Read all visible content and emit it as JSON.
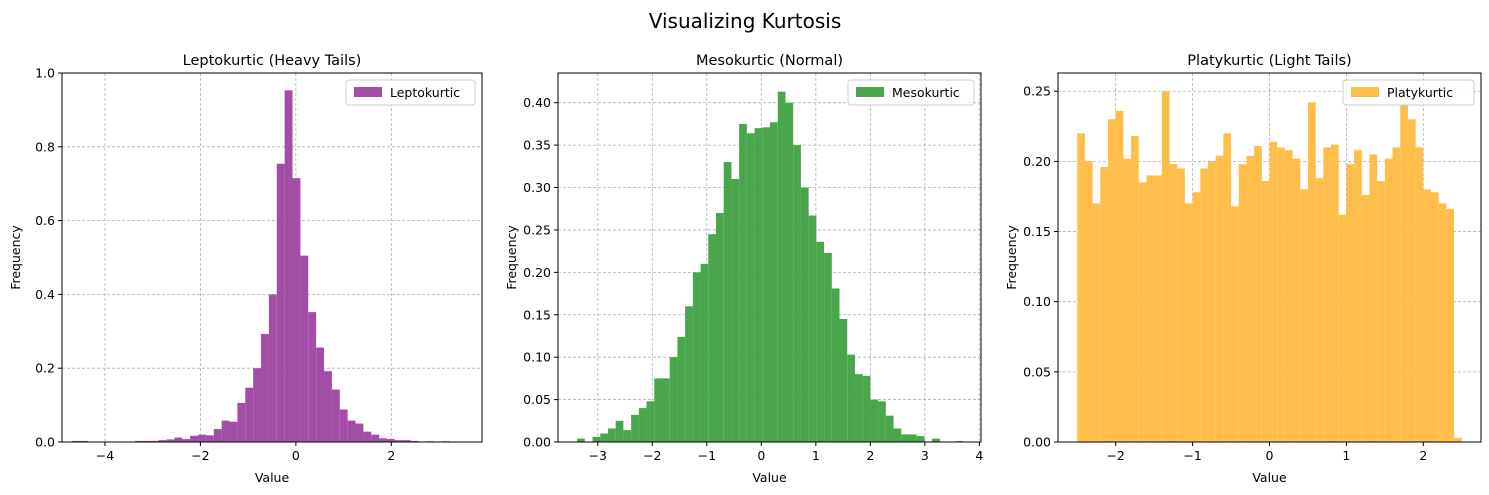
{
  "figure": {
    "title": "Visualizing Kurtosis"
  },
  "chart_data": [
    {
      "type": "bar",
      "title": "Leptokurtic (Heavy Tails)",
      "xlabel": "Value",
      "ylabel": "Frequency",
      "legend": "Leptokurtic",
      "legend_position": "top-right",
      "color": "#a34ea6",
      "grid": true,
      "xlim": [
        -4.9,
        3.9
      ],
      "ylim": [
        0,
        1.0
      ],
      "xticks": [
        -4,
        -2,
        0,
        2
      ],
      "xtick_labels": [
        "−4",
        "−2",
        "0",
        "2"
      ],
      "yticks": [
        0.0,
        0.2,
        0.4,
        0.6,
        0.8,
        1.0
      ],
      "ytick_labels": [
        "0.0",
        "0.2",
        "0.4",
        "0.6",
        "0.8",
        "1.0"
      ],
      "bin_start": -4.69,
      "bin_width": 0.165,
      "values": [
        0.003,
        0.003,
        0.0,
        0.0,
        0.0,
        0.0,
        0.0,
        0.0,
        0.003,
        0.003,
        0.003,
        0.005,
        0.007,
        0.012,
        0.008,
        0.017,
        0.02,
        0.018,
        0.035,
        0.058,
        0.055,
        0.106,
        0.147,
        0.2,
        0.293,
        0.4,
        0.754,
        0.953,
        0.715,
        0.505,
        0.352,
        0.256,
        0.192,
        0.142,
        0.088,
        0.058,
        0.05,
        0.028,
        0.02,
        0.01,
        0.008,
        0.005,
        0.005,
        0.003,
        0.0,
        0.002,
        0.0,
        0.002,
        0.001,
        0.001
      ]
    },
    {
      "type": "bar",
      "title": "Mesokurtic (Normal)",
      "xlabel": "Value",
      "ylabel": "Frequency",
      "legend": "Mesokurtic",
      "legend_position": "top-right",
      "color": "#4aa64a",
      "grid": true,
      "xlim": [
        -3.73,
        4.03
      ],
      "ylim": [
        0,
        0.435
      ],
      "xticks": [
        -3,
        -2,
        -1,
        0,
        1,
        2,
        3,
        4
      ],
      "xtick_labels": [
        "−3",
        "−2",
        "−1",
        "0",
        "1",
        "2",
        "3",
        "4"
      ],
      "yticks": [
        0.0,
        0.05,
        0.1,
        0.15,
        0.2,
        0.25,
        0.3,
        0.35,
        0.4
      ],
      "ytick_labels": [
        "0.00",
        "0.05",
        "0.10",
        "0.15",
        "0.20",
        "0.25",
        "0.30",
        "0.35",
        "0.40"
      ],
      "bin_start": -3.38,
      "bin_width": 0.1416,
      "values": [
        0.004,
        0.0,
        0.006,
        0.01,
        0.016,
        0.025,
        0.014,
        0.032,
        0.04,
        0.048,
        0.075,
        0.075,
        0.1,
        0.124,
        0.16,
        0.2,
        0.21,
        0.245,
        0.27,
        0.33,
        0.31,
        0.375,
        0.364,
        0.37,
        0.371,
        0.377,
        0.413,
        0.4,
        0.35,
        0.3,
        0.267,
        0.236,
        0.223,
        0.181,
        0.145,
        0.103,
        0.08,
        0.078,
        0.05,
        0.048,
        0.031,
        0.016,
        0.009,
        0.009,
        0.007,
        0.0,
        0.004,
        0.0,
        0.0,
        0.001
      ]
    },
    {
      "type": "bar",
      "title": "Platykurtic (Light Tails)",
      "xlabel": "Value",
      "ylabel": "Frequency",
      "legend": "Platykurtic",
      "legend_position": "top-right",
      "color": "#ffbd4a",
      "grid": true,
      "xlim": [
        -2.75,
        2.75
      ],
      "ylim": [
        0,
        0.263
      ],
      "xticks": [
        -2,
        -1,
        0,
        1,
        2
      ],
      "xtick_labels": [
        "−2",
        "−1",
        "0",
        "1",
        "2"
      ],
      "yticks": [
        0.0,
        0.05,
        0.1,
        0.15,
        0.2,
        0.25
      ],
      "ytick_labels": [
        "0.00",
        "0.05",
        "0.10",
        "0.15",
        "0.20",
        "0.25"
      ],
      "bin_start": -2.5,
      "bin_width": 0.1,
      "values": [
        0.22,
        0.2,
        0.17,
        0.196,
        0.23,
        0.236,
        0.202,
        0.218,
        0.185,
        0.19,
        0.19,
        0.25,
        0.198,
        0.195,
        0.17,
        0.178,
        0.195,
        0.2,
        0.204,
        0.22,
        0.168,
        0.198,
        0.204,
        0.211,
        0.186,
        0.214,
        0.21,
        0.208,
        0.202,
        0.18,
        0.242,
        0.188,
        0.21,
        0.212,
        0.162,
        0.198,
        0.208,
        0.176,
        0.205,
        0.186,
        0.202,
        0.21,
        0.24,
        0.23,
        0.21,
        0.18,
        0.178,
        0.17,
        0.166,
        0.003
      ]
    }
  ]
}
